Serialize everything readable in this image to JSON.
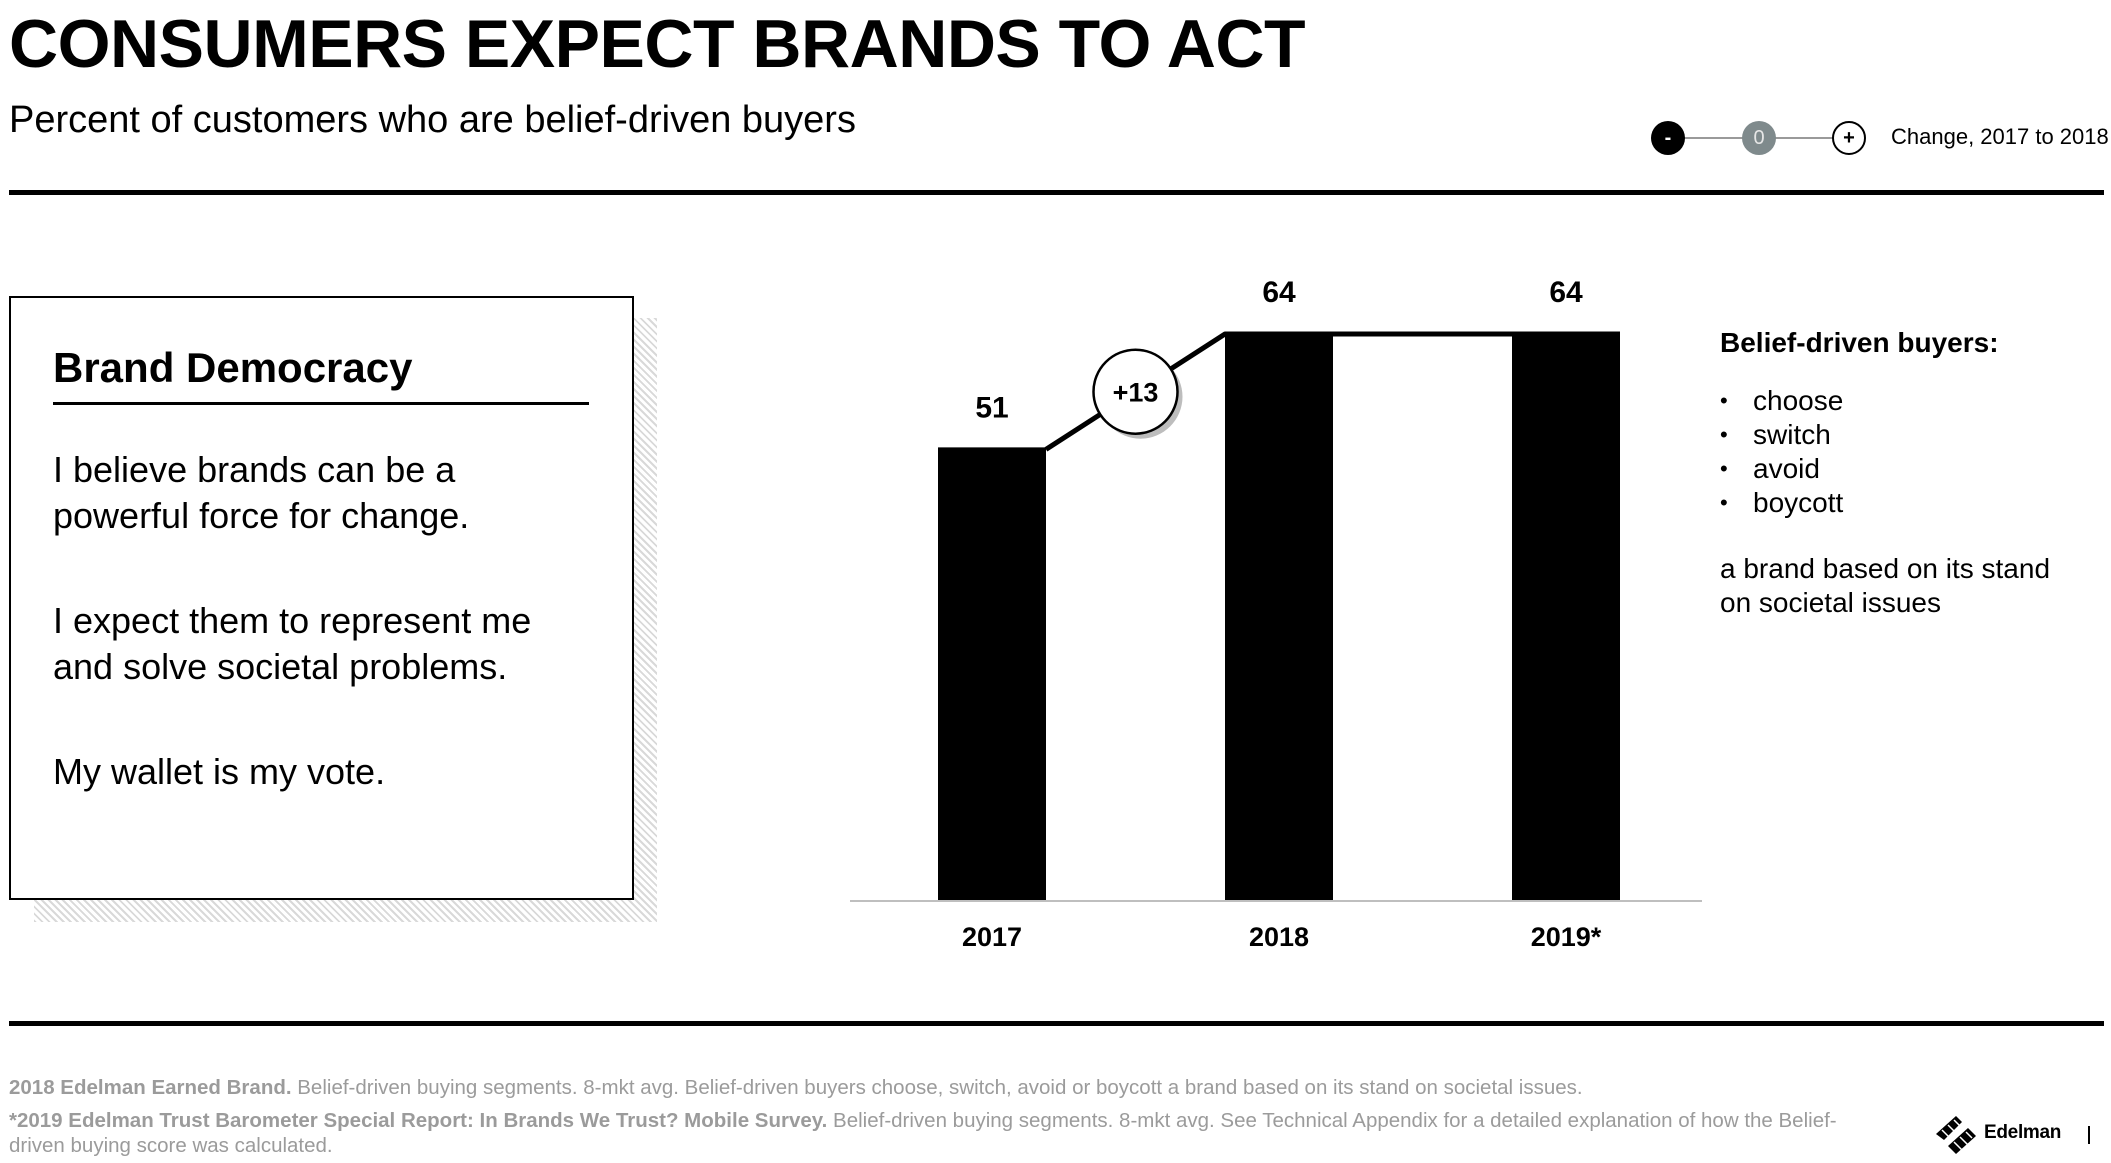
{
  "header": {
    "title": "CONSUMERS EXPECT BRANDS TO ACT",
    "subtitle": "Percent of customers who are belief-driven buyers"
  },
  "legend": {
    "negative": "-",
    "zero": "0",
    "positive": "+",
    "label": "Change, 2017 to 2018"
  },
  "card": {
    "title": "Brand Democracy",
    "p1": "I believe brands can be a powerful force for change.",
    "p2": "I expect them to represent me and solve societal problems.",
    "p3": "My wallet is my vote."
  },
  "chart_data": {
    "type": "bar",
    "categories": [
      "2017",
      "2018",
      "2019*"
    ],
    "values": [
      51,
      64,
      64
    ],
    "data_labels": [
      "51",
      "64",
      "64"
    ],
    "ylim": [
      0,
      64
    ],
    "change_annotation": "+13",
    "connector_line": true,
    "title": "",
    "xlabel": "",
    "ylabel": "",
    "grid": false,
    "colors": {
      "bar": "#000000",
      "baseline": "#bfbfbf"
    }
  },
  "side": {
    "title": "Belief-driven buyers:",
    "items": [
      "choose",
      "switch",
      "avoid",
      "boycott"
    ],
    "note": "a brand based on its stand on societal issues"
  },
  "footer": {
    "line1_bold": "2018 Edelman Earned Brand.",
    "line1_text": " Belief-driven buying segments. 8-mkt avg. Belief-driven buyers choose, switch, avoid or boycott a brand based on its stand on societal issues.",
    "line2_bold": "*2019 Edelman Trust Barometer Special Report: In Brands We Trust? Mobile Survey.",
    "line2_text": " Belief-driven buying segments. 8-mkt avg. See Technical Appendix for a detailed explanation of how the Belief-driven buying score was calculated.",
    "logo": "Edelman"
  }
}
